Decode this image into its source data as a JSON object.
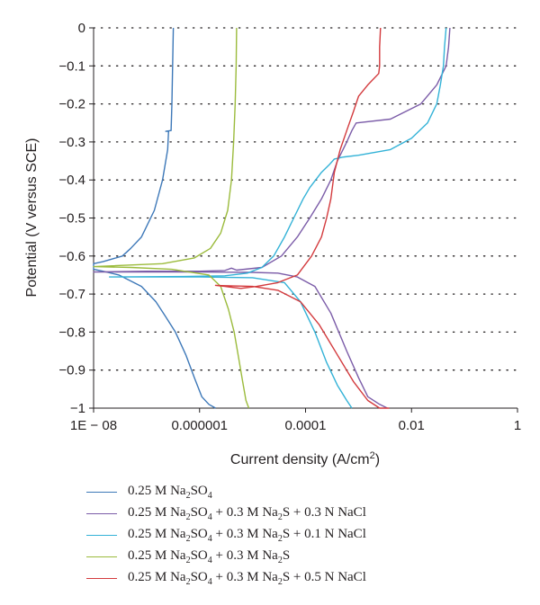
{
  "chart_data": {
    "type": "line",
    "xlabel": "Current density (A/cm²)",
    "ylabel": "Potential (V versus SCE)",
    "x_scale": "log",
    "xlim": [
      1e-08,
      1
    ],
    "ylim": [
      -1,
      0
    ],
    "grid": "horizontal dotted",
    "x_ticks": [
      {
        "value": 1e-08,
        "label": "1E − 08"
      },
      {
        "value": 1e-06,
        "label": "0.000001"
      },
      {
        "value": 0.0001,
        "label": "0.0001"
      },
      {
        "value": 0.01,
        "label": "0.01"
      },
      {
        "value": 1,
        "label": "1"
      }
    ],
    "y_ticks": [
      {
        "value": 0,
        "label": "0"
      },
      {
        "value": -0.1,
        "label": "−0.1"
      },
      {
        "value": -0.2,
        "label": "−0.2"
      },
      {
        "value": -0.3,
        "label": "−0.3"
      },
      {
        "value": -0.4,
        "label": "−0.4"
      },
      {
        "value": -0.5,
        "label": "−0.5"
      },
      {
        "value": -0.6,
        "label": "−0.6"
      },
      {
        "value": -0.7,
        "label": "−0.7"
      },
      {
        "value": -0.8,
        "label": "−0.8"
      },
      {
        "value": -0.9,
        "label": "−0.9"
      },
      {
        "value": -1,
        "label": "−1"
      }
    ],
    "legend_position": "bottom",
    "series": [
      {
        "name": "0.25 M Na2SO4",
        "color": "#3d78b8",
        "points": [
          [
            3.2e-07,
            0
          ],
          [
            3.1e-07,
            -0.1
          ],
          [
            3e-07,
            -0.2
          ],
          [
            2.9e-07,
            -0.27
          ],
          [
            2.3e-07,
            -0.272
          ],
          [
            2.6e-07,
            -0.272
          ],
          [
            2.5e-07,
            -0.32
          ],
          [
            2e-07,
            -0.4
          ],
          [
            1.4e-07,
            -0.48
          ],
          [
            8e-08,
            -0.55
          ],
          [
            5e-08,
            -0.58
          ],
          [
            3.5e-08,
            -0.6
          ],
          [
            1.5e-08,
            -0.615
          ],
          [
            1e-08,
            -0.62
          ],
          [
            1e-08,
            -0.635
          ],
          [
            1.5e-08,
            -0.64
          ],
          [
            3e-08,
            -0.65
          ],
          [
            8e-08,
            -0.68
          ],
          [
            1.5e-07,
            -0.72
          ],
          [
            2.3e-07,
            -0.76
          ],
          [
            3.5e-07,
            -0.8
          ],
          [
            5.5e-07,
            -0.86
          ],
          [
            8e-07,
            -0.92
          ],
          [
            1.1e-06,
            -0.97
          ],
          [
            1.5e-06,
            -0.99
          ],
          [
            2e-06,
            -1.0
          ]
        ]
      },
      {
        "name": "0.25 M Na2SO4 + 0.3 M Na2S + 0.3 N NaCl",
        "color": "#7b5ca8",
        "points": [
          [
            0.053,
            0
          ],
          [
            0.05,
            -0.05
          ],
          [
            0.045,
            -0.1
          ],
          [
            0.03,
            -0.15
          ],
          [
            0.015,
            -0.2
          ],
          [
            0.004,
            -0.24
          ],
          [
            0.0009,
            -0.25
          ],
          [
            0.00075,
            -0.27
          ],
          [
            0.0006,
            -0.3
          ],
          [
            0.0004,
            -0.35
          ],
          [
            0.0003,
            -0.4
          ],
          [
            0.0002,
            -0.45
          ],
          [
            0.00012,
            -0.5
          ],
          [
            7e-05,
            -0.55
          ],
          [
            3.5e-05,
            -0.6
          ],
          [
            1.5e-05,
            -0.63
          ],
          [
            5e-06,
            -0.637
          ],
          [
            4e-06,
            -0.632
          ],
          [
            3e-06,
            -0.638
          ],
          [
            1e-06,
            -0.64
          ],
          [
            1e-07,
            -0.64
          ],
          [
            1e-08,
            -0.642
          ],
          [
            1e-06,
            -0.642
          ],
          [
            1e-05,
            -0.643
          ],
          [
            3e-05,
            -0.645
          ],
          [
            7e-05,
            -0.655
          ],
          [
            0.00015,
            -0.68
          ],
          [
            0.0003,
            -0.75
          ],
          [
            0.0006,
            -0.85
          ],
          [
            0.001,
            -0.92
          ],
          [
            0.0015,
            -0.97
          ],
          [
            0.0025,
            -0.99
          ],
          [
            0.0035,
            -1.0
          ]
        ]
      },
      {
        "name": "0.25 M Na2SO4 + 0.3 M Na2S + 0.1 N NaCl",
        "color": "#33b2d7",
        "points": [
          [
            0.045,
            0
          ],
          [
            0.042,
            -0.05
          ],
          [
            0.04,
            -0.1
          ],
          [
            0.035,
            -0.15
          ],
          [
            0.03,
            -0.2
          ],
          [
            0.02,
            -0.25
          ],
          [
            0.01,
            -0.29
          ],
          [
            0.004,
            -0.32
          ],
          [
            0.001,
            -0.335
          ],
          [
            0.0005,
            -0.34
          ],
          [
            0.00035,
            -0.345
          ],
          [
            0.00028,
            -0.36
          ],
          [
            0.0002,
            -0.38
          ],
          [
            0.00012,
            -0.42
          ],
          [
            9e-05,
            -0.45
          ],
          [
            6e-05,
            -0.5
          ],
          [
            4e-05,
            -0.55
          ],
          [
            2.5e-05,
            -0.6
          ],
          [
            1.5e-05,
            -0.63
          ],
          [
            8e-06,
            -0.645
          ],
          [
            3e-06,
            -0.652
          ],
          [
            5e-07,
            -0.654
          ],
          [
            2e-08,
            -0.655
          ],
          [
            1e-06,
            -0.655
          ],
          [
            1e-05,
            -0.657
          ],
          [
            4e-05,
            -0.67
          ],
          [
            8e-05,
            -0.72
          ],
          [
            0.00015,
            -0.8
          ],
          [
            0.00025,
            -0.88
          ],
          [
            0.0004,
            -0.94
          ],
          [
            0.0006,
            -0.98
          ],
          [
            0.00075,
            -1.0
          ]
        ]
      },
      {
        "name": "0.25 M Na2SO4 + 0.3 M Na2S",
        "color": "#9bbb3c",
        "points": [
          [
            5e-06,
            0
          ],
          [
            4.9e-06,
            -0.1
          ],
          [
            4.7e-06,
            -0.2
          ],
          [
            4.4e-06,
            -0.3
          ],
          [
            4e-06,
            -0.4
          ],
          [
            3.4e-06,
            -0.48
          ],
          [
            2.5e-06,
            -0.54
          ],
          [
            1.6e-06,
            -0.58
          ],
          [
            8e-07,
            -0.605
          ],
          [
            2e-07,
            -0.62
          ],
          [
            1e-08,
            -0.628
          ],
          [
            5e-08,
            -0.63
          ],
          [
            3e-07,
            -0.635
          ],
          [
            1.5e-06,
            -0.65
          ],
          [
            2.5e-06,
            -0.68
          ],
          [
            3.5e-06,
            -0.74
          ],
          [
            4.5e-06,
            -0.8
          ],
          [
            5.5e-06,
            -0.87
          ],
          [
            6.5e-06,
            -0.93
          ],
          [
            7.5e-06,
            -0.98
          ],
          [
            8.5e-06,
            -1.0
          ]
        ]
      },
      {
        "name": "0.25 M Na2SO4 + 0.3 M Na2S + 0.5 N NaCl",
        "color": "#d33a3d",
        "points": [
          [
            0.0026,
            0
          ],
          [
            0.0025,
            -0.05
          ],
          [
            0.0025,
            -0.1
          ],
          [
            0.0024,
            -0.12
          ],
          [
            0.0015,
            -0.15
          ],
          [
            0.001,
            -0.18
          ],
          [
            0.0008,
            -0.22
          ],
          [
            0.0006,
            -0.27
          ],
          [
            0.00045,
            -0.32
          ],
          [
            0.00035,
            -0.38
          ],
          [
            0.0003,
            -0.45
          ],
          [
            0.00025,
            -0.5
          ],
          [
            0.0002,
            -0.55
          ],
          [
            0.00013,
            -0.6
          ],
          [
            7e-05,
            -0.65
          ],
          [
            3e-05,
            -0.67
          ],
          [
            1.2e-05,
            -0.68
          ],
          [
            6e-06,
            -0.685
          ],
          [
            3e-06,
            -0.68
          ],
          [
            2e-06,
            -0.677
          ],
          [
            3e-06,
            -0.678
          ],
          [
            1e-05,
            -0.68
          ],
          [
            3e-05,
            -0.69
          ],
          [
            8e-05,
            -0.72
          ],
          [
            0.00018,
            -0.78
          ],
          [
            0.0004,
            -0.86
          ],
          [
            0.0008,
            -0.93
          ],
          [
            0.0015,
            -0.98
          ],
          [
            0.0025,
            -1.0
          ],
          [
            0.0038,
            -1.0
          ]
        ]
      }
    ],
    "legend": [
      {
        "base": "0.25 M Na",
        "sub1": "2",
        "mid": "SO",
        "sub2": "4",
        "rest": ""
      },
      {
        "base": "0.25 M Na",
        "sub1": "2",
        "mid": "SO",
        "sub2": "4",
        "rest": " + 0.3 M Na",
        "sub3": "2",
        "tail": "S + 0.3 N NaCl"
      },
      {
        "base": "0.25 M Na",
        "sub1": "2",
        "mid": "SO",
        "sub2": "4",
        "rest": " + 0.3 M Na",
        "sub3": "2",
        "tail": "S + 0.1 N NaCl"
      },
      {
        "base": "0.25 M Na",
        "sub1": "2",
        "mid": "SO",
        "sub2": "4",
        "rest": " + 0.3 M Na",
        "sub3": "2",
        "tail": "S"
      },
      {
        "base": "0.25 M Na",
        "sub1": "2",
        "mid": "SO",
        "sub2": "4",
        "rest": " + 0.3 M Na",
        "sub3": "2",
        "tail": "S + 0.5 N NaCl"
      }
    ]
  }
}
